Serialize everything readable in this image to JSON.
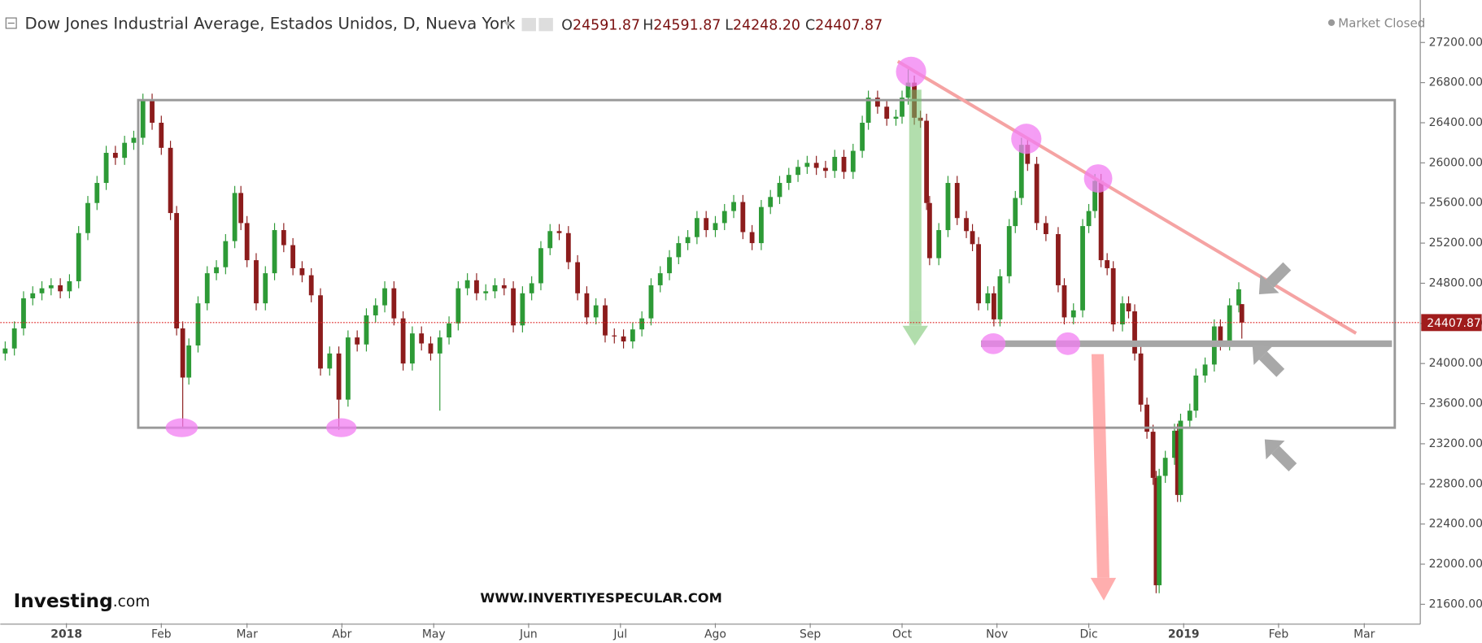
{
  "header": {
    "title": "Dow Jones Industrial Average, Estados Unidos, D, Nueva York",
    "ohlc_letters": [
      "O",
      "H",
      "L",
      "C"
    ],
    "low_label": "24248.20",
    "status": "Market Closed"
  },
  "watermark": "WWW.INVERTIYESPECULAR.COM",
  "logo": {
    "brand": "Investing",
    "suffix": ".com"
  },
  "chart_data": {
    "type": "candlestick",
    "x": [
      -20,
      -17,
      -14,
      -11,
      -8,
      -5,
      -2,
      1,
      4,
      7,
      10,
      13,
      16,
      19,
      22,
      25,
      28,
      31,
      34,
      36,
      38,
      40,
      43,
      46,
      49,
      52,
      55,
      57,
      59,
      62,
      65,
      68,
      71,
      74,
      77,
      80,
      83,
      86,
      89,
      92,
      95,
      98,
      101,
      104,
      107,
      110,
      113,
      116,
      119,
      122,
      125,
      128,
      131,
      134,
      137,
      140,
      143,
      146,
      149,
      152,
      155,
      158,
      161,
      164,
      167,
      170,
      173,
      176,
      179,
      182,
      185,
      188,
      191,
      194,
      197,
      200,
      203,
      206,
      209,
      212,
      215,
      218,
      221,
      224,
      227,
      230,
      233,
      236,
      239,
      242,
      245,
      248,
      251,
      254,
      257,
      260,
      262,
      265,
      268,
      271,
      273,
      275,
      277,
      279,
      281,
      282,
      285,
      288,
      291,
      294,
      296,
      298,
      301,
      303,
      305,
      308,
      310,
      312,
      314,
      317,
      320,
      324,
      326,
      329,
      332,
      334,
      336,
      338,
      340,
      342,
      345,
      347,
      349,
      351,
      353,
      355,
      356,
      357,
      359,
      362,
      363,
      364,
      367,
      369,
      372,
      375,
      377,
      380,
      383,
      384
    ],
    "open": [
      24100,
      24150,
      24350,
      24650,
      24700,
      24750,
      24780,
      24720,
      24820,
      25300,
      25600,
      25800,
      26100,
      26050,
      26200,
      26250,
      26620,
      26400,
      26150,
      25500,
      24350,
      23860,
      24180,
      24600,
      24900,
      24960,
      25220,
      25700,
      25400,
      25030,
      24600,
      24900,
      25330,
      25180,
      24950,
      24880,
      24680,
      23950,
      24100,
      23640,
      24260,
      24190,
      24480,
      24580,
      24750,
      24450,
      24000,
      24300,
      24200,
      24100,
      24260,
      24400,
      24750,
      24830,
      24700,
      24720,
      24780,
      24750,
      24380,
      24700,
      24800,
      25150,
      25320,
      25300,
      25010,
      24700,
      24460,
      24580,
      24280,
      24270,
      24220,
      24340,
      24450,
      24780,
      24900,
      25060,
      25200,
      25260,
      25450,
      25330,
      25400,
      25520,
      25610,
      25310,
      25200,
      25560,
      25660,
      25800,
      25880,
      25960,
      26000,
      25950,
      25920,
      26060,
      25910,
      26120,
      26400,
      26650,
      26560,
      26440,
      26460,
      26650,
      26800,
      26450,
      26420,
      25600,
      25050,
      25330,
      25800,
      25450,
      25320,
      25190,
      24600,
      24700,
      24440,
      24870,
      25370,
      25650,
      26180,
      25990,
      25400,
      25290,
      24780,
      24460,
      24530,
      25370,
      25520,
      25820,
      25030,
      24950,
      24390,
      24600,
      24520,
      24100,
      23590,
      23320,
      22860,
      21790,
      22880,
      23060,
      23330,
      22690,
      23430,
      23530,
      23880,
      23990,
      24370,
      24200,
      24580,
      24591.87
    ],
    "high": [
      24220,
      24420,
      24720,
      24770,
      24820,
      24850,
      24850,
      24890,
      25370,
      25670,
      25870,
      26170,
      26170,
      26270,
      26320,
      26690,
      26690,
      26470,
      26220,
      25570,
      24420,
      24250,
      24670,
      24970,
      25030,
      25290,
      25770,
      25770,
      25470,
      25100,
      24970,
      25400,
      25400,
      25250,
      25020,
      24950,
      24750,
      24170,
      24170,
      24330,
      24330,
      24550,
      24650,
      24820,
      24820,
      24520,
      24370,
      24370,
      24270,
      24330,
      24470,
      24820,
      24900,
      24900,
      24790,
      24850,
      24850,
      24820,
      24770,
      24870,
      25220,
      25390,
      25390,
      25370,
      25080,
      24770,
      24650,
      24650,
      24350,
      24340,
      24410,
      24520,
      24850,
      24970,
      25130,
      25270,
      25330,
      25520,
      25520,
      25470,
      25590,
      25680,
      25680,
      25380,
      25630,
      25730,
      25870,
      25950,
      26030,
      26070,
      26070,
      26020,
      26130,
      26130,
      26190,
      26470,
      26720,
      26720,
      26630,
      26530,
      26720,
      26950,
      26870,
      26520,
      26490,
      25670,
      25400,
      25870,
      25870,
      25520,
      25390,
      25260,
      24770,
      24770,
      24940,
      25440,
      25720,
      26250,
      26250,
      26060,
      25470,
      25360,
      24850,
      24600,
      25440,
      25590,
      25890,
      25890,
      25100,
      25020,
      24670,
      24670,
      24590,
      24170,
      23660,
      23390,
      22930,
      22950,
      23130,
      23400,
      23400,
      23500,
      23600,
      23950,
      24060,
      24440,
      24440,
      24650,
      24810,
      24591.87
    ],
    "low": [
      24030,
      24080,
      24280,
      24580,
      24630,
      24680,
      24650,
      24650,
      24750,
      25230,
      25530,
      25730,
      25980,
      25980,
      26130,
      26180,
      26330,
      26080,
      25430,
      24280,
      23360,
      23790,
      24110,
      24530,
      24830,
      24890,
      25150,
      25330,
      24960,
      24530,
      24530,
      24830,
      25110,
      24880,
      24810,
      24610,
      23880,
      23880,
      23340,
      23570,
      24120,
      24120,
      24410,
      24510,
      24380,
      23930,
      23930,
      24130,
      24030,
      23530,
      24190,
      24330,
      24680,
      24630,
      24630,
      24650,
      24680,
      24310,
      24310,
      24630,
      24730,
      25080,
      25230,
      24940,
      24630,
      24390,
      24390,
      24210,
      24200,
      24150,
      24150,
      24270,
      24380,
      24710,
      24830,
      24990,
      25130,
      25190,
      25260,
      25260,
      25330,
      25450,
      25240,
      25130,
      25130,
      25490,
      25590,
      25730,
      25810,
      25890,
      25880,
      25850,
      25850,
      25840,
      25840,
      26050,
      26330,
      26490,
      26370,
      26370,
      26390,
      26580,
      26380,
      26350,
      25530,
      24980,
      24980,
      25260,
      25380,
      25250,
      25120,
      24530,
      24530,
      24370,
      24370,
      24800,
      25300,
      25580,
      25920,
      25330,
      25220,
      24710,
      24390,
      24390,
      24460,
      25300,
      25450,
      24960,
      24880,
      24320,
      24320,
      24450,
      24030,
      23520,
      23250,
      22790,
      21710,
      21710,
      22810,
      22990,
      22620,
      22620,
      23360,
      23460,
      23810,
      23920,
      24130,
      24130,
      24510,
      24248.2
    ],
    "close": [
      24150,
      24350,
      24650,
      24700,
      24750,
      24780,
      24720,
      24820,
      25300,
      25600,
      25800,
      26100,
      26050,
      26200,
      26250,
      26620,
      26400,
      26150,
      25500,
      24350,
      23860,
      24180,
      24600,
      24900,
      24960,
      25220,
      25700,
      25400,
      25030,
      24600,
      24900,
      25330,
      25180,
      24950,
      24880,
      24680,
      23950,
      24100,
      23640,
      24260,
      24190,
      24480,
      24580,
      24750,
      24450,
      24000,
      24300,
      24200,
      24100,
      24260,
      24400,
      24750,
      24830,
      24700,
      24720,
      24780,
      24750,
      24380,
      24700,
      24800,
      25150,
      25320,
      25300,
      25010,
      24700,
      24460,
      24580,
      24280,
      24270,
      24220,
      24340,
      24450,
      24780,
      24900,
      25060,
      25200,
      25260,
      25450,
      25330,
      25400,
      25520,
      25610,
      25310,
      25200,
      25560,
      25660,
      25800,
      25880,
      25960,
      26000,
      25950,
      25920,
      26060,
      25910,
      26120,
      26400,
      26650,
      26560,
      26440,
      26460,
      26650,
      26800,
      26450,
      26420,
      25600,
      25050,
      25330,
      25800,
      25450,
      25320,
      25190,
      24600,
      24700,
      24440,
      24870,
      25370,
      25650,
      26180,
      25990,
      25400,
      25290,
      24780,
      24460,
      24530,
      25370,
      25520,
      25820,
      25030,
      24950,
      24390,
      24600,
      24520,
      24100,
      23590,
      23320,
      22860,
      21790,
      22880,
      23060,
      23330,
      22690,
      23430,
      23530,
      23880,
      23990,
      24370,
      24200,
      24580,
      24740,
      24407.87
    ],
    "up_color": "#2d9a36",
    "down_color": "#8c1c1c",
    "xlim": [
      -21.6,
      442.3
    ],
    "xticks": [
      {
        "value": 0,
        "label": "2018"
      },
      {
        "value": 31,
        "label": "Feb"
      },
      {
        "value": 59,
        "label": "Mar"
      },
      {
        "value": 90,
        "label": "Abr"
      },
      {
        "value": 120,
        "label": "May"
      },
      {
        "value": 151,
        "label": "Jun"
      },
      {
        "value": 181,
        "label": "Jul"
      },
      {
        "value": 212,
        "label": "Ago"
      },
      {
        "value": 243,
        "label": "Sep"
      },
      {
        "value": 273,
        "label": "Oct"
      },
      {
        "value": 304,
        "label": "Nov"
      },
      {
        "value": 334,
        "label": "Dic"
      },
      {
        "value": 365,
        "label": "2019"
      },
      {
        "value": 396,
        "label": "Feb"
      },
      {
        "value": 424,
        "label": "Mar"
      }
    ],
    "ylim": [
      21411.8,
      27623.5
    ],
    "yticks": [
      {
        "value": 21600,
        "label": "21600.00"
      },
      {
        "value": 22000,
        "label": "22000.00"
      },
      {
        "value": 22400,
        "label": "22400.00"
      },
      {
        "value": 22800,
        "label": "22800.00"
      },
      {
        "value": 23200,
        "label": "23200.00"
      },
      {
        "value": 23600,
        "label": "23600.00"
      },
      {
        "value": 24000,
        "label": "24000.00"
      },
      {
        "value": 24400,
        "label": "24400.00"
      },
      {
        "value": 24800,
        "label": "24800.00"
      },
      {
        "value": 25200,
        "label": "25200.00"
      },
      {
        "value": 25600,
        "label": "25600.00"
      },
      {
        "value": 26000,
        "label": "26000.00"
      },
      {
        "value": 26400,
        "label": "26400.00"
      },
      {
        "value": 26800,
        "label": "26800.00"
      },
      {
        "value": 27200,
        "label": "27200.00"
      }
    ]
  }
}
